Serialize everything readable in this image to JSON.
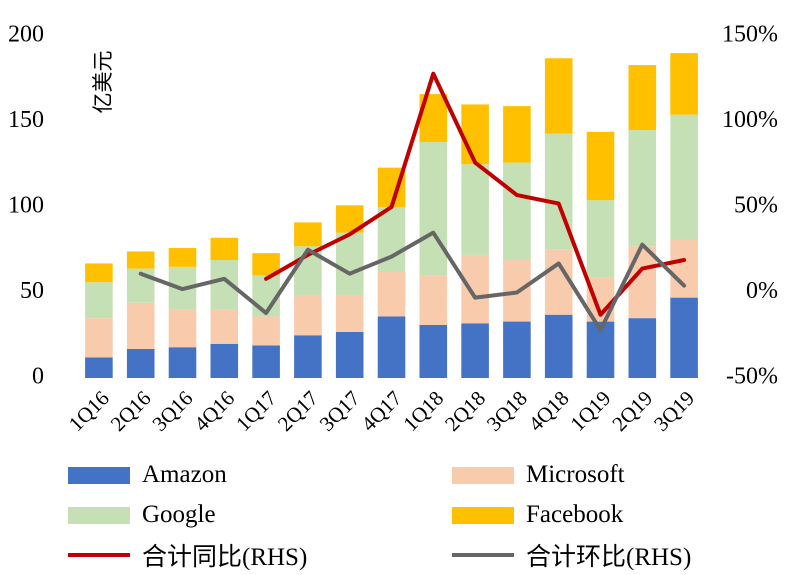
{
  "chart_data": {
    "type": "bar",
    "stacked": true,
    "categories": [
      "1Q16",
      "2Q16",
      "3Q16",
      "4Q16",
      "1Q17",
      "2Q17",
      "3Q17",
      "4Q17",
      "1Q18",
      "2Q18",
      "3Q18",
      "4Q18",
      "1Q19",
      "2Q19",
      "3Q19"
    ],
    "left_axis": {
      "unit_label": "亿美元",
      "ylim": [
        0,
        200
      ],
      "ticks": [
        "0",
        "50",
        "100",
        "150",
        "200"
      ]
    },
    "right_axis": {
      "ylim": [
        -50,
        150
      ],
      "ticks": [
        "-50%",
        "0%",
        "50%",
        "100%",
        "150%"
      ]
    },
    "series": [
      {
        "name": "Amazon",
        "kind": "bar",
        "color": "#4472C4",
        "values": [
          12,
          17,
          18,
          20,
          19,
          25,
          27,
          36,
          31,
          32,
          33,
          37,
          33,
          35,
          47
        ]
      },
      {
        "name": "Microsoft",
        "kind": "bar",
        "color": "#F8CBAD",
        "values": [
          23,
          27,
          22,
          20,
          17,
          23,
          21,
          26,
          29,
          40,
          36,
          38,
          26,
          42,
          34
        ]
      },
      {
        "name": "Google",
        "kind": "bar",
        "color": "#C5E0B4",
        "values": [
          21,
          20,
          25,
          29,
          24,
          29,
          37,
          38,
          78,
          53,
          57,
          68,
          45,
          68,
          73
        ]
      },
      {
        "name": "Facebook",
        "kind": "bar",
        "color": "#FFC000",
        "values": [
          11,
          10,
          11,
          13,
          13,
          14,
          16,
          23,
          28,
          35,
          33,
          44,
          40,
          38,
          36
        ]
      },
      {
        "name": "合计同比(RHS)",
        "kind": "line",
        "axis": "right",
        "color": "#C00000",
        "values": [
          null,
          null,
          null,
          null,
          8,
          22,
          34,
          50,
          128,
          76,
          57,
          52,
          -13,
          14,
          19
        ]
      },
      {
        "name": "合计环比(RHS)",
        "kind": "line",
        "axis": "right",
        "color": "#666666",
        "values": [
          null,
          11,
          2,
          8,
          -12,
          25,
          11,
          21,
          35,
          -3,
          0,
          17,
          -22,
          28,
          4
        ]
      }
    ],
    "legend_position": "bottom",
    "grid": false
  },
  "legend": {
    "amazon": "Amazon",
    "microsoft": "Microsoft",
    "google": "Google",
    "facebook": "Facebook",
    "yoy": "合计同比(RHS)",
    "qoq": "合计环比(RHS)"
  }
}
